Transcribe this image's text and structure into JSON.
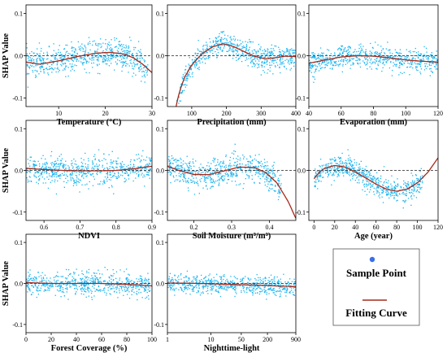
{
  "colors": {
    "point": "#1ab4f0",
    "curve": "#a52a1a",
    "zero": "#222222",
    "axis": "#000000"
  },
  "legend": {
    "point_label": "Sample Point",
    "curve_label": "Fitting Curve"
  },
  "chart_data": [
    {
      "type": "scatter",
      "xlabel": "Temperature (°C)",
      "ylabel": "SHAP Value",
      "xscale": "linear",
      "xlim": [
        3,
        30
      ],
      "ylim": [
        -0.12,
        0.12
      ],
      "xticks": [
        10,
        20,
        30
      ],
      "xticklabels": [
        "10",
        "20",
        "30"
      ],
      "yticks": [
        -0.1,
        0,
        0.1
      ],
      "yticklabels": [
        "-0.1",
        "0.0",
        "0.1"
      ],
      "point_x_range": [
        3,
        29
      ],
      "point_spread": 0.03,
      "curve": {
        "x": [
          3,
          6,
          10,
          14,
          18,
          21,
          24,
          26,
          28,
          30
        ],
        "y": [
          -0.015,
          -0.02,
          -0.012,
          -0.002,
          0.006,
          0.008,
          0.004,
          -0.005,
          -0.02,
          -0.04
        ]
      }
    },
    {
      "type": "scatter",
      "xlabel": "Precipitation (mm)",
      "ylabel": "",
      "xscale": "linear",
      "xlim": [
        30,
        400
      ],
      "ylim": [
        -0.12,
        0.12
      ],
      "xticks": [
        100,
        200,
        300,
        400
      ],
      "xticklabels": [
        "100",
        "200",
        "300",
        "400"
      ],
      "yticks": [
        -0.1,
        0,
        0.1
      ],
      "yticklabels": [
        "-0.1",
        "0.0",
        "0.1"
      ],
      "point_x_range": [
        55,
        400
      ],
      "point_spread": 0.025,
      "curve": {
        "x": [
          50,
          60,
          70,
          80,
          100,
          130,
          160,
          190,
          220,
          250,
          280,
          310,
          340,
          370,
          400
        ],
        "y": [
          -0.14,
          -0.1,
          -0.072,
          -0.05,
          -0.022,
          0.005,
          0.021,
          0.028,
          0.022,
          0.01,
          -0.001,
          -0.007,
          -0.005,
          -0.001,
          -0.002
        ]
      }
    },
    {
      "type": "scatter",
      "xlabel": "Evaporation (mm)",
      "ylabel": "",
      "xscale": "linear",
      "xlim": [
        40,
        120
      ],
      "ylim": [
        -0.12,
        0.12
      ],
      "xticks": [
        40,
        60,
        80,
        100,
        120
      ],
      "xticklabels": [
        "40",
        "60",
        "80",
        "100",
        "120"
      ],
      "yticks": [
        -0.1,
        0,
        0.1
      ],
      "yticklabels": [
        "-0.1",
        "0.0",
        "0.1"
      ],
      "point_x_range": [
        40,
        120
      ],
      "point_spread": 0.025,
      "curve": {
        "x": [
          40,
          50,
          60,
          70,
          80,
          90,
          100,
          110,
          120
        ],
        "y": [
          -0.018,
          -0.01,
          -0.003,
          0,
          -0.001,
          -0.005,
          -0.01,
          -0.013,
          -0.015
        ]
      }
    },
    {
      "type": "scatter",
      "xlabel": "NDVI",
      "ylabel": "SHAP Value",
      "xscale": "linear",
      "xlim": [
        0.55,
        0.9
      ],
      "ylim": [
        -0.12,
        0.12
      ],
      "xticks": [
        0.6,
        0.7,
        0.8,
        0.9
      ],
      "xticklabels": [
        "0.6",
        "0.7",
        "0.8",
        "0.9"
      ],
      "yticks": [
        -0.1,
        0,
        0.1
      ],
      "yticklabels": [
        "-0.1",
        "0.0",
        "0.1"
      ],
      "point_x_range": [
        0.55,
        0.9
      ],
      "point_spread": 0.03,
      "curve": {
        "x": [
          0.55,
          0.6,
          0.65,
          0.7,
          0.75,
          0.8,
          0.85,
          0.9
        ],
        "y": [
          0.005,
          0.002,
          0.0,
          -0.001,
          -0.001,
          0.0,
          0.004,
          0.01
        ]
      }
    },
    {
      "type": "scatter",
      "xlabel": "Soil Moisture (m³/m³)",
      "ylabel": "",
      "xscale": "linear",
      "xlim": [
        0.13,
        0.47
      ],
      "ylim": [
        -0.12,
        0.12
      ],
      "xticks": [
        0.2,
        0.3,
        0.4
      ],
      "xticklabels": [
        "0.2",
        "0.3",
        "0.4"
      ],
      "yticks": [
        -0.1,
        0,
        0.1
      ],
      "yticklabels": [
        "-0.1",
        "0.0",
        "0.1"
      ],
      "point_x_range": [
        0.13,
        0.43
      ],
      "point_spread": 0.03,
      "curve": {
        "x": [
          0.13,
          0.16,
          0.2,
          0.24,
          0.28,
          0.32,
          0.36,
          0.39,
          0.42,
          0.45,
          0.47
        ],
        "y": [
          0.01,
          0.0,
          -0.01,
          -0.01,
          -0.001,
          0.008,
          0.007,
          -0.005,
          -0.03,
          -0.075,
          -0.115
        ]
      }
    },
    {
      "type": "scatter",
      "xlabel": "Age (year)",
      "ylabel": "",
      "xscale": "linear",
      "xlim": [
        -5,
        120
      ],
      "ylim": [
        -0.12,
        0.12
      ],
      "xticks": [
        0,
        20,
        40,
        60,
        80,
        100,
        120
      ],
      "xticklabels": [
        "0",
        "20",
        "40",
        "60",
        "80",
        "100",
        "120"
      ],
      "yticks": [
        -0.1,
        0,
        0.1
      ],
      "yticklabels": [
        "-0.1",
        "0.0",
        "0.1"
      ],
      "point_x_range": [
        0,
        105
      ],
      "point_spread": 0.025,
      "curve": {
        "x": [
          0,
          5,
          10,
          20,
          30,
          40,
          50,
          60,
          70,
          80,
          90,
          100,
          110,
          120
        ],
        "y": [
          -0.02,
          -0.005,
          0.005,
          0.012,
          0.008,
          -0.004,
          -0.018,
          -0.033,
          -0.045,
          -0.05,
          -0.045,
          -0.03,
          -0.005,
          0.03
        ]
      }
    },
    {
      "type": "scatter",
      "xlabel": "Forest Coverage (%)",
      "ylabel": "SHAP Value",
      "xscale": "linear",
      "xlim": [
        0,
        100
      ],
      "ylim": [
        -0.12,
        0.12
      ],
      "xticks": [
        0,
        20,
        40,
        60,
        80,
        100
      ],
      "xticklabels": [
        "0",
        "20",
        "40",
        "60",
        "80",
        "100"
      ],
      "yticks": [
        -0.1,
        0,
        0.1
      ],
      "yticklabels": [
        "-0.1",
        "0.0",
        "0.1"
      ],
      "point_x_range": [
        0,
        98
      ],
      "point_spread": 0.025,
      "curve": {
        "x": [
          0,
          20,
          40,
          60,
          80,
          100
        ],
        "y": [
          0.002,
          0.0,
          0.0,
          0.0,
          -0.002,
          -0.006
        ]
      }
    },
    {
      "type": "scatter",
      "xlabel": "Nighttime-light",
      "ylabel": "",
      "xscale": "log",
      "xlim": [
        1,
        900
      ],
      "ylim": [
        -0.12,
        0.12
      ],
      "xticks": [
        1,
        10,
        50,
        200,
        900
      ],
      "xticklabels": [
        "1",
        "10",
        "50",
        "200",
        "900"
      ],
      "yticks": [
        -0.1,
        0,
        0.1
      ],
      "yticklabels": [
        "-0.1",
        "0.0",
        "0.1"
      ],
      "point_x_range": [
        1,
        900
      ],
      "point_spread": 0.02,
      "curve": {
        "x": [
          1,
          5,
          20,
          80,
          300,
          900
        ],
        "y": [
          0.001,
          0.0,
          -0.002,
          -0.004,
          -0.006,
          -0.008
        ]
      }
    }
  ]
}
